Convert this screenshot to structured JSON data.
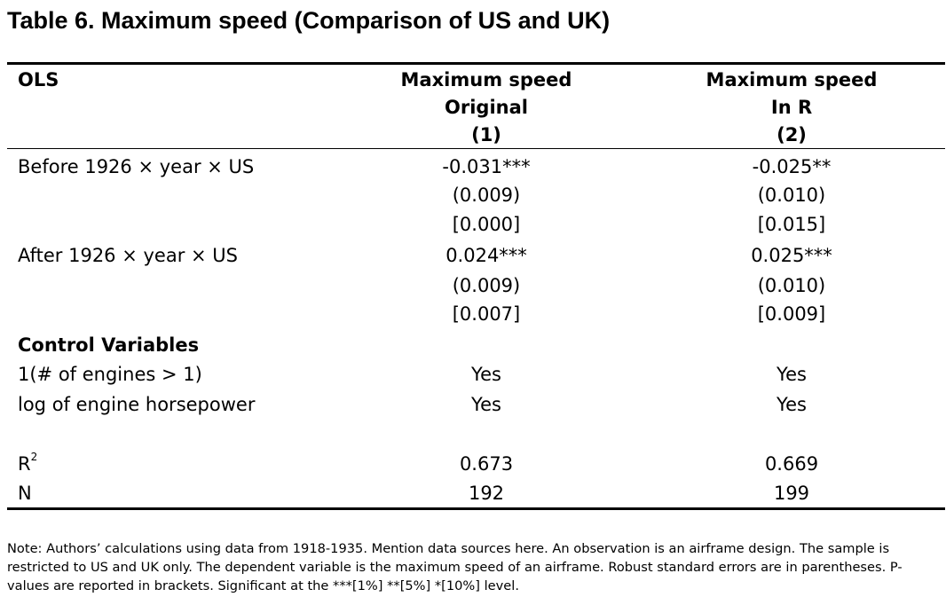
{
  "title": "Table 6. Maximum speed (Comparison of US and UK)",
  "header": {
    "stub": "OLS",
    "columns": [
      {
        "line1": "Maximum speed",
        "line2": "Original",
        "line3": "(1)"
      },
      {
        "line1": "Maximum speed",
        "line2": "In R",
        "line3": "(2)"
      }
    ]
  },
  "rows": [
    {
      "label": "Before 1926 × year × US",
      "col1": "-0.031***",
      "col2": "-0.025**"
    },
    {
      "label": "",
      "col1": "(0.009)",
      "col2": "(0.010)"
    },
    {
      "label": "",
      "col1": "[0.000]",
      "col2": "[0.015]"
    },
    {
      "label": "After 1926 × year × US",
      "col1": "0.024***",
      "col2": "0.025***"
    },
    {
      "label": "",
      "col1": "(0.009)",
      "col2": "(0.010)"
    },
    {
      "label": "",
      "col1": "[0.007]",
      "col2": "[0.009]"
    }
  ],
  "controls": {
    "heading": "Control Variables",
    "items": [
      {
        "label": "1(# of engines > 1)",
        "col1": "Yes",
        "col2": "Yes"
      },
      {
        "label": "log of engine horsepower",
        "col1": "Yes",
        "col2": "Yes"
      }
    ]
  },
  "stats": {
    "r2": {
      "label": "R",
      "sup": "2",
      "col1": "0.673",
      "col2": "0.669"
    },
    "n": {
      "label": "N",
      "col1": "192",
      "col2": "199"
    }
  },
  "note": "Note: Authors’ calculations using data from 1918-1935. Mention data sources here. An observation is an airframe design. The sample is restricted to US and UK only. The dependent variable is the maximum speed of an airframe. Robust standard errors are in parentheses. P-values are reported in brackets. Significant at the ***[1%] **[5%] *[10%] level."
}
